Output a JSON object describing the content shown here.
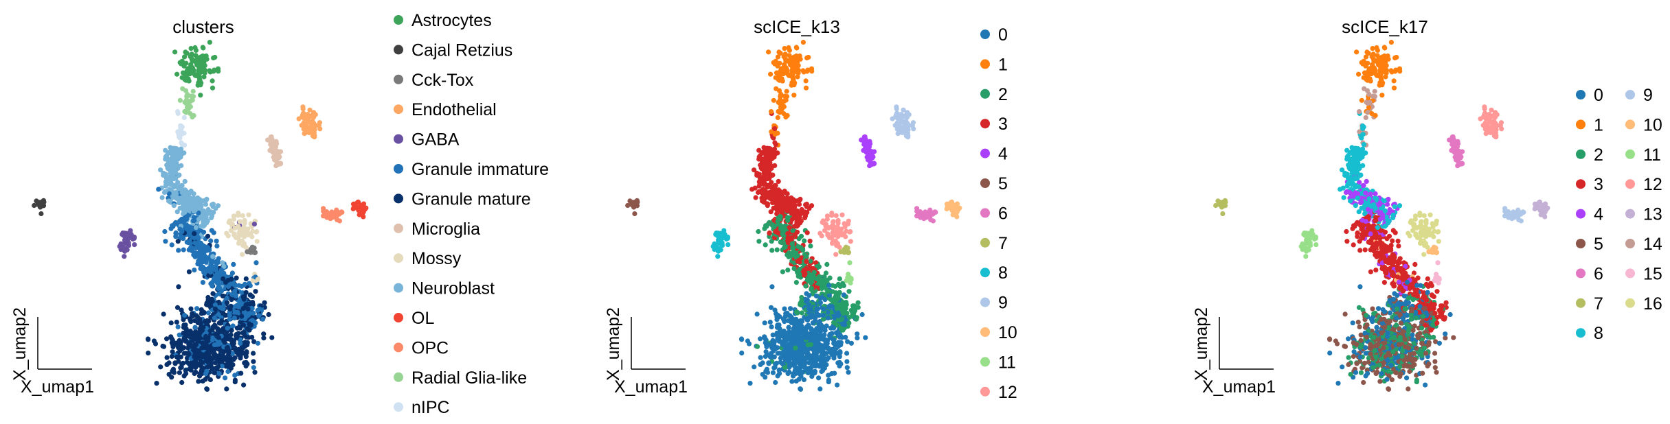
{
  "chart_data": {
    "type": "scatter",
    "xlabel": "X_umap1",
    "ylabel": "X_umap2",
    "regions": {
      "astro": {
        "kind": "blob",
        "c": [
          5.3,
          9.2
        ],
        "s": [
          0.25,
          0.3
        ],
        "n": 120
      },
      "rgl": {
        "kind": "blob",
        "c": [
          5.06,
          8.2
        ],
        "s": [
          0.1,
          0.25
        ],
        "n": 30
      },
      "nipc": {
        "kind": "blob",
        "c": [
          4.86,
          7.4
        ],
        "s": [
          0.07,
          0.22
        ],
        "n": 20
      },
      "neuro1": {
        "kind": "seg",
        "a": [
          4.76,
          6.9
        ],
        "b": [
          4.5,
          5.96
        ],
        "w": 0.22,
        "n": 110
      },
      "neuro2": {
        "kind": "seg",
        "a": [
          4.4,
          5.9
        ],
        "b": [
          5.7,
          4.76
        ],
        "w": 0.3,
        "n": 220
      },
      "gim1": {
        "kind": "seg",
        "a": [
          4.84,
          4.8
        ],
        "b": [
          6.2,
          2.8
        ],
        "w": 0.35,
        "n": 320
      },
      "gim2": {
        "kind": "seg",
        "a": [
          6.2,
          3.0
        ],
        "b": [
          7.16,
          1.8
        ],
        "w": 0.35,
        "n": 160
      },
      "gmatseg": {
        "kind": "seg",
        "a": [
          5.6,
          2.4
        ],
        "b": [
          7.0,
          1.8
        ],
        "w": 0.3,
        "n": 120
      },
      "gmat": {
        "kind": "blob",
        "c": [
          5.7,
          1.1
        ],
        "s": [
          0.6,
          0.45
        ],
        "n": 650
      },
      "mossy": {
        "kind": "blob",
        "c": [
          6.6,
          4.6
        ],
        "s": [
          0.2,
          0.25
        ],
        "n": 60
      },
      "cck": {
        "kind": "blob",
        "c": [
          6.94,
          3.9
        ],
        "s": [
          0.07,
          0.07
        ],
        "n": 15
      },
      "microglia": {
        "kind": "seg",
        "a": [
          7.46,
          7.2
        ],
        "b": [
          7.74,
          6.4
        ],
        "w": 0.12,
        "n": 50
      },
      "endo": {
        "kind": "blob",
        "c": [
          8.6,
          7.64
        ],
        "s": [
          0.15,
          0.22
        ],
        "n": 70
      },
      "opc": {
        "kind": "blob",
        "c": [
          9.26,
          4.96
        ],
        "s": [
          0.15,
          0.08
        ],
        "n": 40
      },
      "ol": {
        "kind": "blob",
        "c": [
          10.1,
          5.14
        ],
        "s": [
          0.09,
          0.1
        ],
        "n": 35
      },
      "gaba": {
        "kind": "blob",
        "c": [
          3.28,
          4.2
        ],
        "s": [
          0.1,
          0.2
        ],
        "n": 40
      },
      "cajal": {
        "kind": "blob",
        "c": [
          0.8,
          5.26
        ],
        "s": [
          0.08,
          0.08
        ],
        "n": 25
      },
      "misc": {
        "kind": "blob",
        "c": [
          7.04,
          3.1
        ],
        "s": [
          0.06,
          0.2
        ],
        "n": 12
      }
    },
    "panels": [
      {
        "title": "clusters",
        "legend_columns": 1,
        "categories": [
          "Astrocytes",
          "Cajal Retzius",
          "Cck-Tox",
          "Endothelial",
          "GABA",
          "Granule immature",
          "Granule mature",
          "Microglia",
          "Mossy",
          "Neuroblast",
          "OL",
          "OPC",
          "Radial Glia-like",
          "nIPC"
        ],
        "colors": [
          "#3ba458",
          "#404040",
          "#7a7a7a",
          "#fda762",
          "#6950a1",
          "#2172b6",
          "#08306b",
          "#dfc0af",
          "#e6dabd",
          "#78b3d8",
          "#f14432",
          "#fc8a6a",
          "#98d594",
          "#d0e1f2"
        ],
        "assign": {
          "astro": [
            [
              "Astrocytes",
              1
            ]
          ],
          "rgl": [
            [
              "Radial Glia-like",
              1
            ]
          ],
          "nipc": [
            [
              "nIPC",
              1
            ]
          ],
          "neuro1": [
            [
              "Neuroblast",
              1
            ]
          ],
          "neuro2": [
            [
              "Neuroblast",
              0.95
            ],
            [
              "Granule immature",
              0.05
            ]
          ],
          "gim1": [
            [
              "Granule immature",
              0.85
            ],
            [
              "Granule mature",
              0.1
            ],
            [
              "Neuroblast",
              0.05
            ]
          ],
          "gim2": [
            [
              "Granule immature",
              0.6
            ],
            [
              "Granule mature",
              0.4
            ]
          ],
          "gmatseg": [
            [
              "Granule mature",
              0.6
            ],
            [
              "Granule immature",
              0.4
            ]
          ],
          "gmat": [
            [
              "Granule mature",
              0.85
            ],
            [
              "Granule immature",
              0.15
            ]
          ],
          "mossy": [
            [
              "Mossy",
              0.95
            ],
            [
              "GABA",
              0.05
            ]
          ],
          "cck": [
            [
              "Cck-Tox",
              1
            ]
          ],
          "microglia": [
            [
              "Microglia",
              1
            ]
          ],
          "endo": [
            [
              "Endothelial",
              1
            ]
          ],
          "opc": [
            [
              "OPC",
              1
            ]
          ],
          "ol": [
            [
              "OL",
              1
            ]
          ],
          "gaba": [
            [
              "GABA",
              1
            ]
          ],
          "cajal": [
            [
              "Cajal Retzius",
              1
            ]
          ],
          "misc": [
            [
              "Mossy",
              0.5
            ],
            [
              "Granule immature",
              0.5
            ]
          ]
        }
      },
      {
        "title": "scICE_k13",
        "legend_columns": 1,
        "categories": [
          "0",
          "1",
          "2",
          "3",
          "4",
          "5",
          "6",
          "7",
          "8",
          "9",
          "10",
          "11",
          "12"
        ],
        "colors": [
          "#1f77b4",
          "#ff7f0e",
          "#279e68",
          "#d62728",
          "#aa40fc",
          "#8c564b",
          "#e377c2",
          "#b5bd61",
          "#17becf",
          "#aec7e8",
          "#ffbb78",
          "#98df8a",
          "#ff9896"
        ],
        "assign": {
          "astro": [
            [
              "1",
              1
            ]
          ],
          "rgl": [
            [
              "1",
              1
            ]
          ],
          "nipc": [
            [
              "1",
              0.5
            ],
            [
              "3",
              0.5
            ]
          ],
          "neuro1": [
            [
              "3",
              1
            ]
          ],
          "neuro2": [
            [
              "3",
              1
            ]
          ],
          "gim1": [
            [
              "3",
              0.35
            ],
            [
              "2",
              0.65
            ]
          ],
          "gim2": [
            [
              "2",
              0.8
            ],
            [
              "0",
              0.2
            ]
          ],
          "gmatseg": [
            [
              "2",
              0.4
            ],
            [
              "0",
              0.6
            ]
          ],
          "gmat": [
            [
              "0",
              0.97
            ],
            [
              "2",
              0.03
            ]
          ],
          "mossy": [
            [
              "12",
              1
            ]
          ],
          "cck": [
            [
              "7",
              1
            ]
          ],
          "microglia": [
            [
              "4",
              1
            ]
          ],
          "endo": [
            [
              "9",
              1
            ]
          ],
          "opc": [
            [
              "6",
              1
            ]
          ],
          "ol": [
            [
              "10",
              1
            ]
          ],
          "gaba": [
            [
              "8",
              1
            ]
          ],
          "cajal": [
            [
              "5",
              1
            ]
          ],
          "misc": [
            [
              "11",
              1
            ]
          ]
        }
      },
      {
        "title": "scICE_k17",
        "legend_columns": 2,
        "categories": [
          "0",
          "1",
          "2",
          "3",
          "4",
          "5",
          "6",
          "7",
          "8",
          "9",
          "10",
          "11",
          "12",
          "13",
          "14",
          "15",
          "16"
        ],
        "colors": [
          "#1f77b4",
          "#ff7f0e",
          "#279e68",
          "#d62728",
          "#aa40fc",
          "#8c564b",
          "#e377c2",
          "#b5bd61",
          "#17becf",
          "#aec7e8",
          "#ffbb78",
          "#98df8a",
          "#ff9896",
          "#c5b0d5",
          "#c49c94",
          "#f7b6d2",
          "#dbdb8d"
        ],
        "assign": {
          "astro": [
            [
              "1",
              1
            ]
          ],
          "rgl": [
            [
              "1",
              0.4
            ],
            [
              "14",
              0.6
            ]
          ],
          "nipc": [
            [
              "14",
              0.5
            ],
            [
              "8",
              0.5
            ]
          ],
          "neuro1": [
            [
              "8",
              1
            ]
          ],
          "neuro2": [
            [
              "8",
              0.55
            ],
            [
              "4",
              0.45
            ]
          ],
          "gim1": [
            [
              "3",
              0.85
            ],
            [
              "4",
              0.1
            ],
            [
              "10",
              0.05
            ]
          ],
          "gim2": [
            [
              "3",
              0.8
            ],
            [
              "0",
              0.1
            ],
            [
              "2",
              0.1
            ]
          ],
          "gmatseg": [
            [
              "0",
              0.5
            ],
            [
              "5",
              0.3
            ],
            [
              "2",
              0.2
            ]
          ],
          "gmat": [
            [
              "5",
              0.4
            ],
            [
              "2",
              0.35
            ],
            [
              "0",
              0.25
            ]
          ],
          "mossy": [
            [
              "16",
              1
            ]
          ],
          "cck": [
            [
              "10",
              1
            ]
          ],
          "microglia": [
            [
              "6",
              1
            ]
          ],
          "endo": [
            [
              "12",
              1
            ]
          ],
          "opc": [
            [
              "9",
              1
            ]
          ],
          "ol": [
            [
              "13",
              1
            ]
          ],
          "gaba": [
            [
              "11",
              1
            ]
          ],
          "cajal": [
            [
              "7",
              1
            ]
          ],
          "misc": [
            [
              "15",
              1
            ]
          ]
        }
      }
    ]
  }
}
